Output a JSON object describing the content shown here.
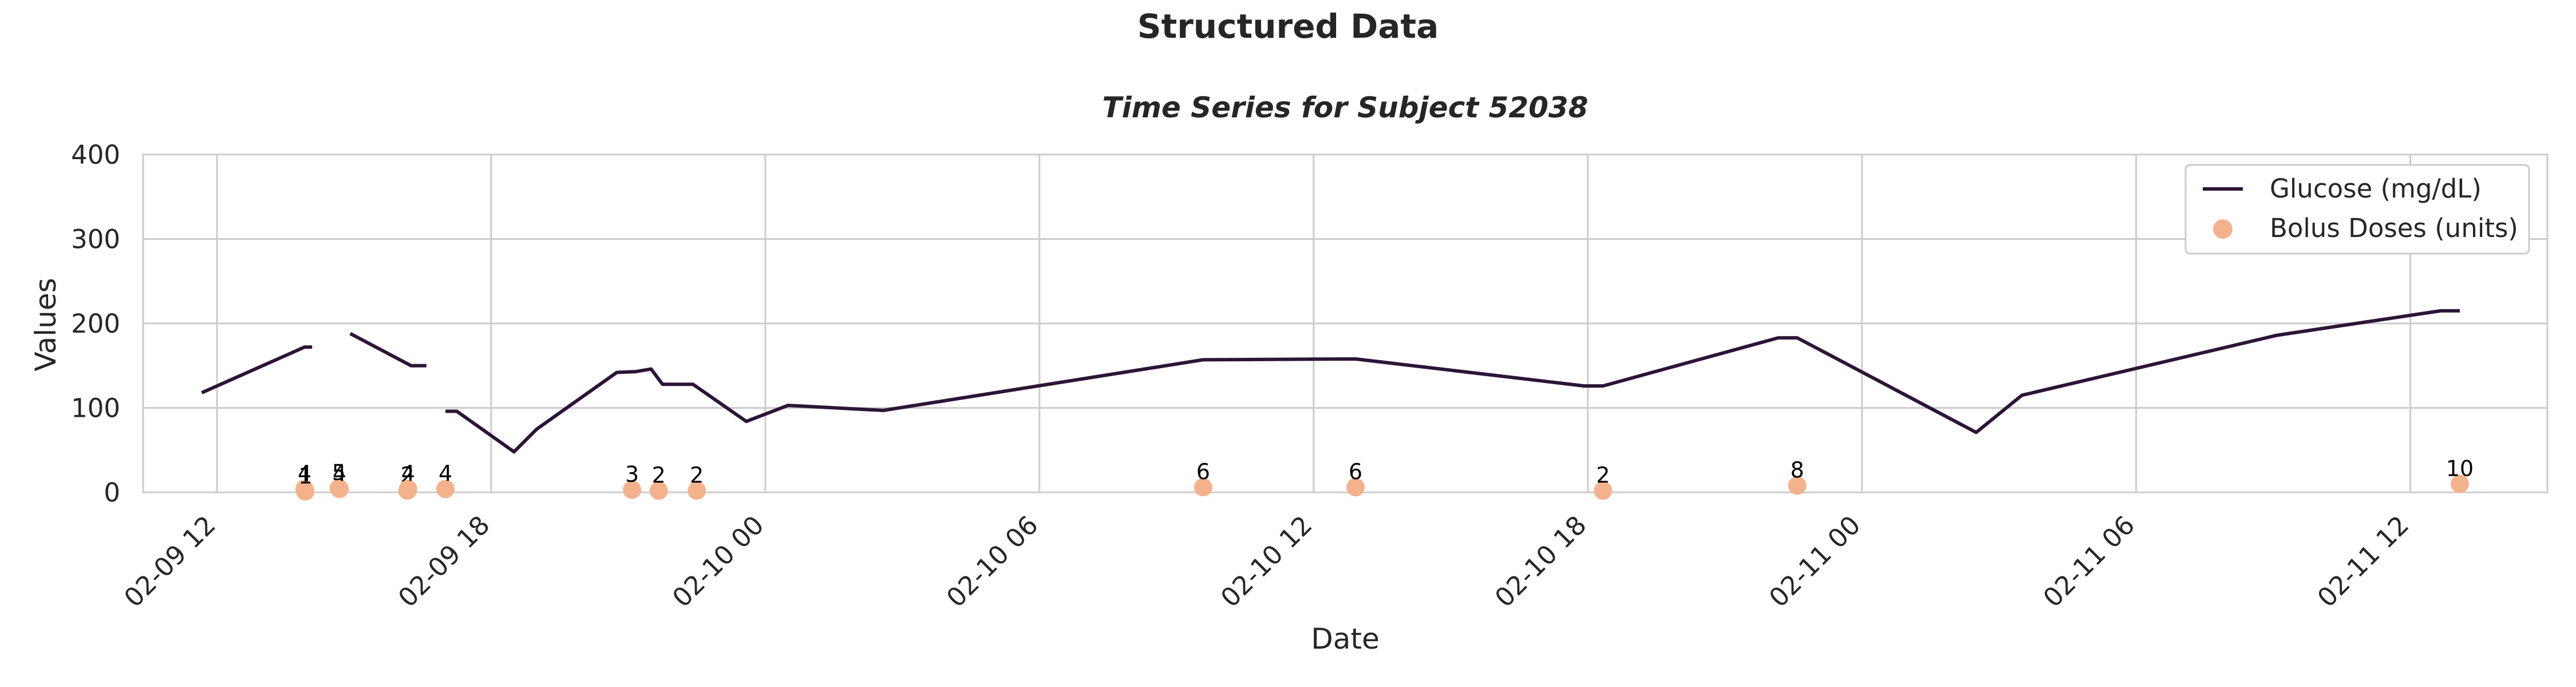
{
  "figure": {
    "suptitle": "Structured Data"
  },
  "chart_data": {
    "type": "line",
    "title": "Time Series for Subject 52038",
    "xlabel": "Date",
    "ylabel": "Values",
    "ylim": [
      0,
      400
    ],
    "xlim": [
      "2009-02-09T10:23",
      "2009-02-11T15:00"
    ],
    "x_ticks": [
      {
        "t": "2009-02-09T12:00",
        "label": "02-09 12"
      },
      {
        "t": "2009-02-09T18:00",
        "label": "02-09 18"
      },
      {
        "t": "2009-02-10T00:00",
        "label": "02-10 00"
      },
      {
        "t": "2009-02-10T06:00",
        "label": "02-10 06"
      },
      {
        "t": "2009-02-10T12:00",
        "label": "02-10 12"
      },
      {
        "t": "2009-02-10T18:00",
        "label": "02-10 18"
      },
      {
        "t": "2009-02-11T00:00",
        "label": "02-11 00"
      },
      {
        "t": "2009-02-11T06:00",
        "label": "02-11 06"
      },
      {
        "t": "2009-02-11T12:00",
        "label": "02-11 12"
      }
    ],
    "y_ticks": [
      0,
      100,
      200,
      300,
      400
    ],
    "grid": true,
    "legend_position": "upper right",
    "series": [
      {
        "name": "Glucose (mg/dL)",
        "type": "line",
        "color": "#2d1537",
        "segments": [
          [
            {
              "t": "2009-02-09T11:40",
              "y": 118
            },
            {
              "t": "2009-02-09T13:55",
              "y": 172
            },
            {
              "t": "2009-02-09T14:05",
              "y": 172
            }
          ],
          [
            {
              "t": "2009-02-09T14:55",
              "y": 188
            },
            {
              "t": "2009-02-09T16:15",
              "y": 150
            },
            {
              "t": "2009-02-09T16:35",
              "y": 150
            }
          ],
          [
            {
              "t": "2009-02-09T17:00",
              "y": 96
            },
            {
              "t": "2009-02-09T17:15",
              "y": 96
            },
            {
              "t": "2009-02-09T18:30",
              "y": 48
            },
            {
              "t": "2009-02-09T19:00",
              "y": 75
            },
            {
              "t": "2009-02-09T20:45",
              "y": 142
            },
            {
              "t": "2009-02-09T21:10",
              "y": 143
            },
            {
              "t": "2009-02-09T21:30",
              "y": 146
            },
            {
              "t": "2009-02-09T21:45",
              "y": 128
            },
            {
              "t": "2009-02-09T22:25",
              "y": 128
            },
            {
              "t": "2009-02-09T23:35",
              "y": 84
            },
            {
              "t": "2009-02-10T00:30",
              "y": 103
            },
            {
              "t": "2009-02-10T02:35",
              "y": 97
            },
            {
              "t": "2009-02-10T09:35",
              "y": 157
            },
            {
              "t": "2009-02-10T12:55",
              "y": 158
            },
            {
              "t": "2009-02-10T17:55",
              "y": 126
            },
            {
              "t": "2009-02-10T18:20",
              "y": 126
            },
            {
              "t": "2009-02-10T22:10",
              "y": 183
            },
            {
              "t": "2009-02-10T22:35",
              "y": 183
            },
            {
              "t": "2009-02-11T02:30",
              "y": 71
            },
            {
              "t": "2009-02-11T03:30",
              "y": 115
            },
            {
              "t": "2009-02-11T09:05",
              "y": 186
            },
            {
              "t": "2009-02-11T12:40",
              "y": 215
            },
            {
              "t": "2009-02-11T13:05",
              "y": 215
            }
          ]
        ]
      },
      {
        "name": "Bolus Doses (units)",
        "type": "scatter",
        "color": "#f4b28c",
        "points": [
          {
            "t": "2009-02-09T13:55",
            "y": 4,
            "label": "4"
          },
          {
            "t": "2009-02-09T13:56",
            "y": 1,
            "label": "1"
          },
          {
            "t": "2009-02-09T14:40",
            "y": 5,
            "label": "5"
          },
          {
            "t": "2009-02-09T14:41",
            "y": 4,
            "label": "4"
          },
          {
            "t": "2009-02-09T16:10",
            "y": 2,
            "label": "2"
          },
          {
            "t": "2009-02-09T16:11",
            "y": 4,
            "label": "4"
          },
          {
            "t": "2009-02-09T17:00",
            "y": 4,
            "label": "4"
          },
          {
            "t": "2009-02-09T21:05",
            "y": 3,
            "label": "3"
          },
          {
            "t": "2009-02-09T21:40",
            "y": 2,
            "label": "2"
          },
          {
            "t": "2009-02-09T22:30",
            "y": 2,
            "label": "2"
          },
          {
            "t": "2009-02-10T09:35",
            "y": 6,
            "label": "6"
          },
          {
            "t": "2009-02-10T12:55",
            "y": 6,
            "label": "6"
          },
          {
            "t": "2009-02-10T18:20",
            "y": 2,
            "label": "2"
          },
          {
            "t": "2009-02-10T22:35",
            "y": 8,
            "label": "8"
          },
          {
            "t": "2009-02-11T13:05",
            "y": 10,
            "label": "10"
          }
        ]
      }
    ]
  }
}
